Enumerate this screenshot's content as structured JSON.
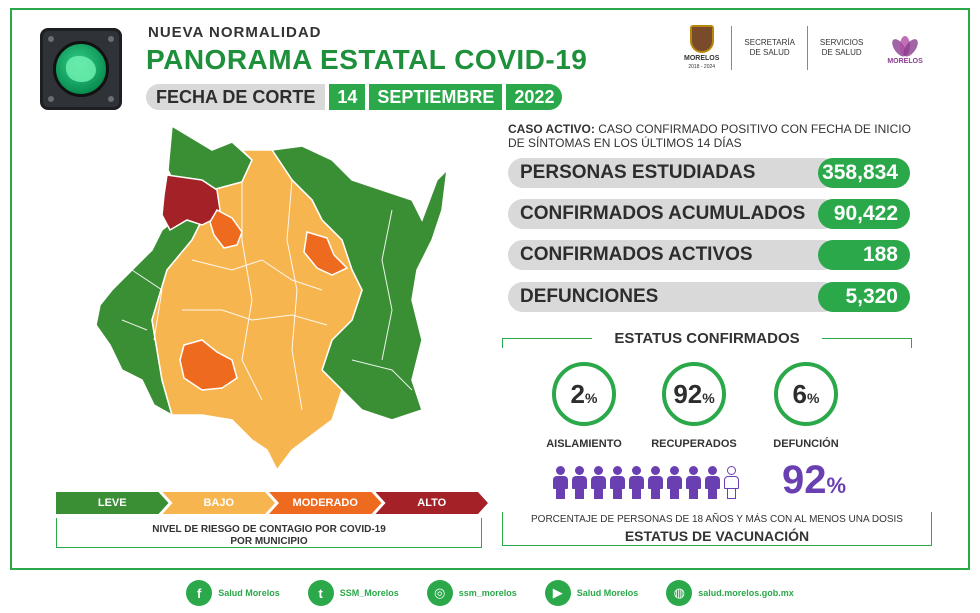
{
  "header": {
    "subtitle": "NUEVA  NORMALIDAD",
    "title": "PANORAMA ESTATAL COVID-19",
    "date_label": "FECHA DE CORTE",
    "date_day": "14",
    "date_month": "SEPTIEMBRE",
    "date_year": "2022"
  },
  "logos": {
    "morelos_name": "MORELOS",
    "morelos_years": "2018 - 2024",
    "secretaria_1": "SECRETARÍA",
    "secretaria_2": "DE SALUD",
    "servicios_1": "SERVICIOS",
    "servicios_2": "DE SALUD",
    "morelos_brand": "MORELOS"
  },
  "legend": {
    "items": [
      {
        "label": "LEVE",
        "color": "#3a8f35"
      },
      {
        "label": "BAJO",
        "color": "#f7b550"
      },
      {
        "label": "MODERADO",
        "color": "#ee6a1f"
      },
      {
        "label": "ALTO",
        "color": "#a32127"
      }
    ],
    "caption_line1": "NIVEL DE RIESGO DE CONTAGIO POR COVID-19",
    "caption_line2": "POR MUNICIPIO"
  },
  "note": {
    "bold": "CASO ACTIVO:",
    "text": " CASO CONFIRMADO POSITIVO CON FECHA DE INICIO DE SÍNTOMAS EN LOS ÚLTIMOS 14 DÍAS"
  },
  "stats": [
    {
      "label": "PERSONAS ESTUDIADAS",
      "value": "358,834"
    },
    {
      "label": "CONFIRMADOS ACUMULADOS",
      "value": "90,422"
    },
    {
      "label": "CONFIRMADOS ACTIVOS",
      "value": "188"
    },
    {
      "label": "DEFUNCIONES",
      "value": "5,320"
    }
  ],
  "status": {
    "title": "ESTATUS CONFIRMADOS",
    "items": [
      {
        "value": "2",
        "unit": "%",
        "label": "AISLAMIENTO"
      },
      {
        "value": "92",
        "unit": "%",
        "label": "RECUPERADOS"
      },
      {
        "value": "6",
        "unit": "%",
        "label": "DEFUNCIÓN"
      }
    ]
  },
  "vaccination": {
    "percent": "92",
    "percent_sign": "%",
    "filled_people": 9,
    "total_people": 10,
    "caption": "PORCENTAJE DE PERSONAS DE 18 AÑOS Y MÁS CON AL MENOS UNA DOSIS",
    "title": "ESTATUS DE VACUNACIÓN"
  },
  "footer": [
    {
      "icon": "facebook-icon",
      "glyph": "f",
      "text": "Salud Morelos"
    },
    {
      "icon": "twitter-icon",
      "glyph": "t",
      "text": "SSM_Morelos"
    },
    {
      "icon": "instagram-icon",
      "glyph": "◎",
      "text": "ssm_morelos"
    },
    {
      "icon": "youtube-icon",
      "glyph": "▶",
      "text": "Salud Morelos"
    },
    {
      "icon": "web-icon",
      "glyph": "◍",
      "text": "salud.morelos.gob.mx"
    }
  ],
  "colors": {
    "green": "#2aa84a",
    "leve": "#3a8f35",
    "bajo": "#f7b550",
    "moderado": "#ee6a1f",
    "alto": "#a32127",
    "purple": "#6a3fb2"
  }
}
